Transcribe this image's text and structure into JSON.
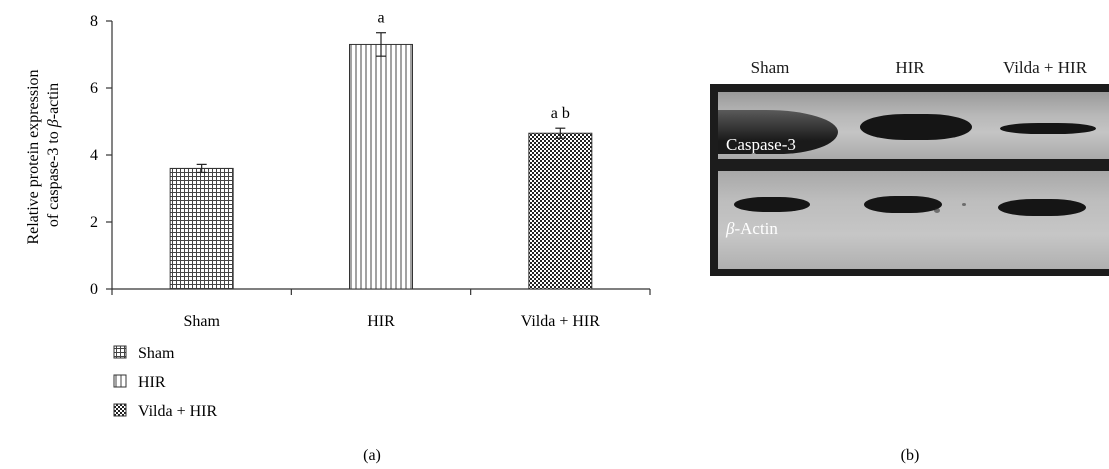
{
  "chart_data": {
    "type": "bar",
    "categories": [
      "Sham",
      "HIR",
      "Vilda + HIR"
    ],
    "values": [
      3.6,
      7.3,
      4.65
    ],
    "errors": [
      0.12,
      0.35,
      0.15
    ],
    "significance": [
      "",
      "a",
      "a b"
    ],
    "ylabel_line1": "Relative protein expression",
    "ylabel_line2_prefix": "of caspase-3 to ",
    "ylabel_line2_symbol": "β",
    "ylabel_line2_suffix": "-actin",
    "ylim": [
      0,
      8
    ],
    "yticks": [
      0,
      2,
      4,
      6,
      8
    ],
    "grid": false,
    "legend_position": "bottom-left",
    "legend": [
      "Sham",
      "HIR",
      "Vilda + HIR"
    ],
    "patterns": [
      "grid",
      "vertical-lines",
      "checker"
    ]
  },
  "panel_labels": {
    "a": "(a)",
    "b": "(b)"
  },
  "blot": {
    "lanes": [
      "Sham",
      "HIR",
      "Vilda + HIR"
    ],
    "rows": [
      {
        "label": "Caspase-3"
      },
      {
        "symbol": "β",
        "label": "-Actin"
      }
    ]
  },
  "colors": {
    "bar_stroke": "#333333",
    "blot_frame": "#1c1c1c"
  }
}
